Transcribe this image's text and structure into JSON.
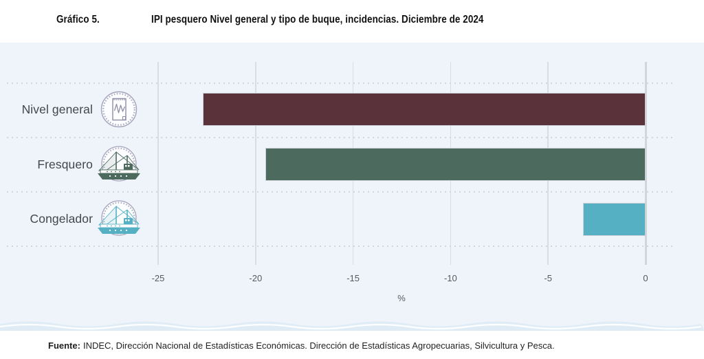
{
  "header": {
    "figure_label": "Gráfico 5.",
    "title": "IPI pesquero Nivel general y tipo de buque, incidencias. Diciembre de 2024"
  },
  "chart_data": {
    "type": "bar",
    "orientation": "horizontal",
    "title": "IPI pesquero Nivel general y tipo de buque, incidencias. Diciembre de 2024",
    "categories": [
      "Nivel general",
      "Fresquero",
      "Congelador"
    ],
    "values": [
      -22.7,
      -19.5,
      -3.2
    ],
    "colors": [
      "#5a333a",
      "#4c6b5e",
      "#55b0c4"
    ],
    "xticks": [
      -25,
      -20,
      -15,
      -10,
      -5,
      0
    ],
    "tick_labels": [
      "-25",
      "-20",
      "-15",
      "-10",
      "-5",
      "0"
    ],
    "xlabel": "%",
    "xlim": [
      -27.5,
      1.5
    ],
    "grid": "vertical gridlines at ticks; dotted horizontal row separators",
    "legend": "none",
    "plot_background": "#eff4fa",
    "row_icons": [
      "line-chart-stamp",
      "fishing-boat-stamp-green",
      "fishing-boat-stamp-teal"
    ]
  },
  "footer": {
    "label": "Fuente:",
    "text": "INDEC, Dirección Nacional de Estadísticas Económicas. Dirección de Estadísticas Agropecuarias, Silvicultura y Pesca."
  }
}
